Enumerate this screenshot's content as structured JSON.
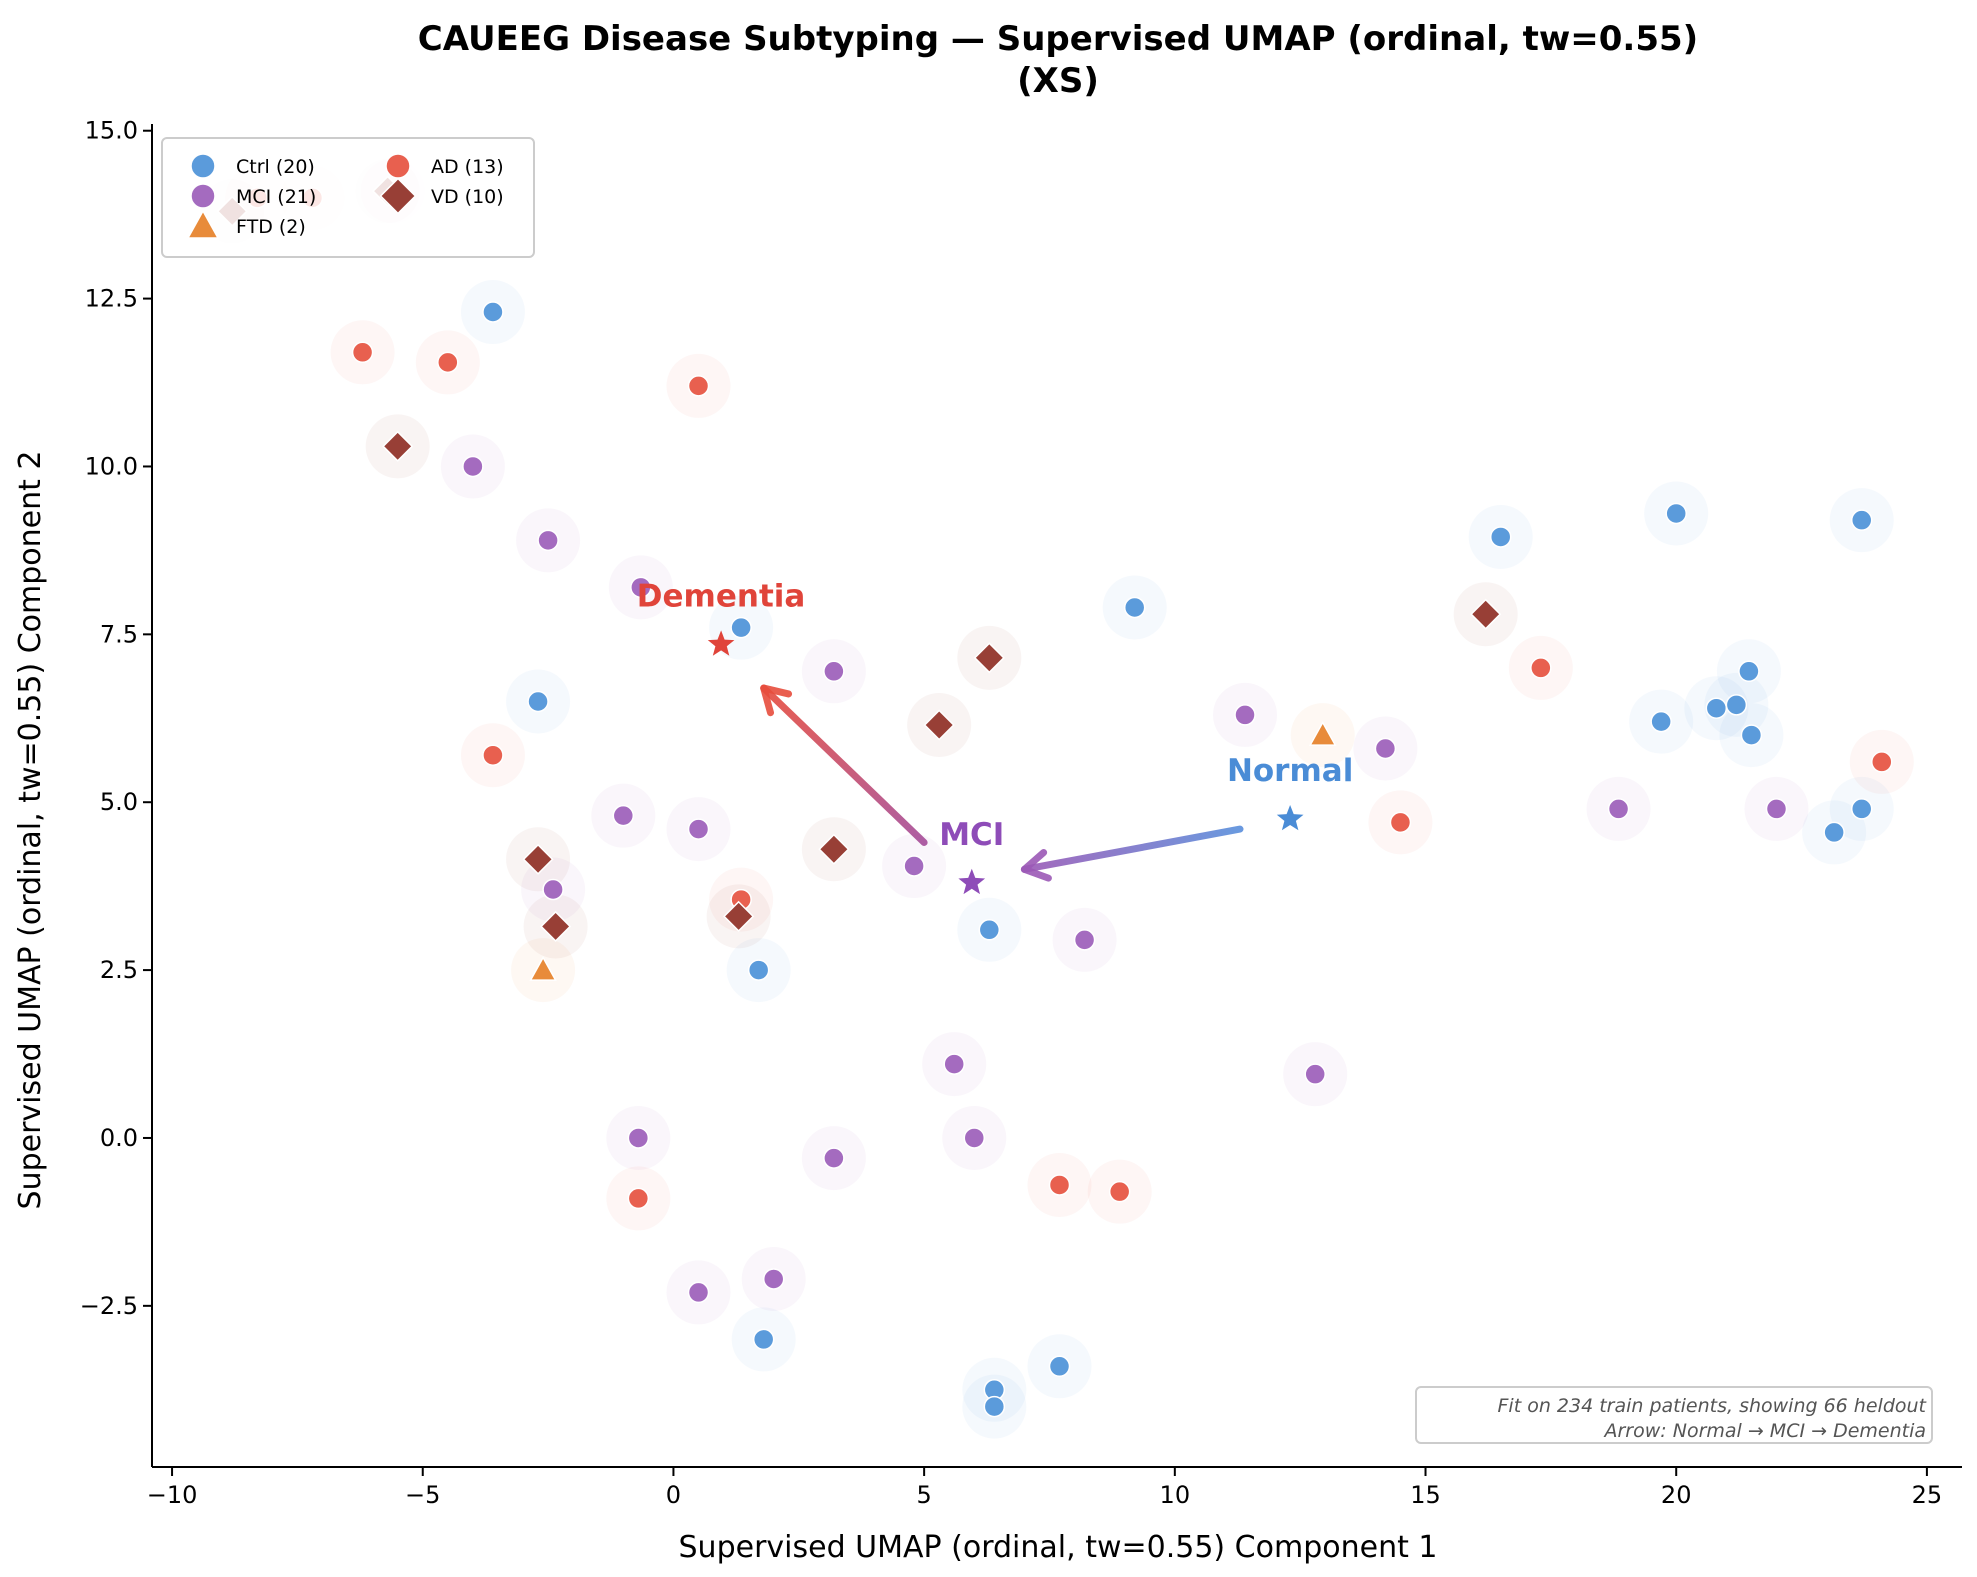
{
  "chart_data": {
    "type": "scatter",
    "title": "CAUEEG Disease Subtyping — Supervised UMAP (ordinal, tw=0.55)",
    "subtitle": "(XS)",
    "xlabel": "Supervised UMAP (ordinal, tw=0.55) Component 1",
    "ylabel": "Supervised UMAP (ordinal, tw=0.55) Component 2",
    "xlim": [
      -10.4,
      25.7
    ],
    "ylim": [
      -4.9,
      15.1
    ],
    "xticks": [
      -10,
      -5,
      0,
      5,
      10,
      15,
      20,
      25
    ],
    "xtick_labels": [
      "−10",
      "−5",
      "0",
      "5",
      "10",
      "15",
      "20",
      "25"
    ],
    "yticks": [
      -2.5,
      0.0,
      2.5,
      5.0,
      7.5,
      10.0,
      12.5,
      15.0
    ],
    "ytick_labels": [
      "−2.5",
      "0.0",
      "2.5",
      "5.0",
      "7.5",
      "10.0",
      "12.5",
      "15.0"
    ],
    "grid": false,
    "legend_placement": "top-left",
    "series": [
      {
        "name": "Ctrl",
        "legend_label": "Ctrl (20)",
        "marker": "circle",
        "color": "#5b9bdb",
        "points": [
          [
            -3.6,
            12.3
          ],
          [
            -2.7,
            6.5
          ],
          [
            1.35,
            7.6
          ],
          [
            1.7,
            2.5
          ],
          [
            6.3,
            3.1
          ],
          [
            9.2,
            7.9
          ],
          [
            16.5,
            8.95
          ],
          [
            20.0,
            9.3
          ],
          [
            23.7,
            9.2
          ],
          [
            21.45,
            6.95
          ],
          [
            20.8,
            6.4
          ],
          [
            21.2,
            6.45
          ],
          [
            21.5,
            6.0
          ],
          [
            19.7,
            6.2
          ],
          [
            23.7,
            4.9
          ],
          [
            23.15,
            4.55
          ],
          [
            1.8,
            -3.0
          ],
          [
            6.4,
            -3.75
          ],
          [
            6.4,
            -4.0
          ],
          [
            7.7,
            -3.4
          ]
        ]
      },
      {
        "name": "MCI",
        "legend_label": "MCI (21)",
        "marker": "circle",
        "color": "#a46bbf",
        "points": [
          [
            -5.6,
            14.1
          ],
          [
            -4.0,
            10.0
          ],
          [
            -2.5,
            8.9
          ],
          [
            -0.65,
            8.2
          ],
          [
            3.2,
            6.95
          ],
          [
            -1.0,
            4.8
          ],
          [
            0.5,
            4.6
          ],
          [
            4.8,
            4.05
          ],
          [
            -2.4,
            3.7
          ],
          [
            8.2,
            2.95
          ],
          [
            5.6,
            1.1
          ],
          [
            -0.7,
            0.0
          ],
          [
            6.0,
            0.0
          ],
          [
            3.2,
            -0.3
          ],
          [
            0.5,
            -2.3
          ],
          [
            2.0,
            -2.1
          ],
          [
            12.8,
            0.95
          ],
          [
            11.4,
            6.3
          ],
          [
            14.2,
            5.8
          ],
          [
            18.85,
            4.9
          ],
          [
            22.0,
            4.9
          ]
        ]
      },
      {
        "name": "FTD",
        "legend_label": "FTD (2)",
        "marker": "triangle",
        "color": "#e88b3a",
        "points": [
          [
            -2.6,
            2.5
          ],
          [
            12.95,
            6.0
          ]
        ]
      },
      {
        "name": "AD",
        "legend_label": "AD (13)",
        "marker": "circle",
        "color": "#e8604f",
        "points": [
          [
            -7.2,
            14.0
          ],
          [
            -6.2,
            11.7
          ],
          [
            -4.5,
            11.55
          ],
          [
            0.5,
            11.2
          ],
          [
            -3.6,
            5.7
          ],
          [
            1.35,
            3.55
          ],
          [
            -0.7,
            -0.9
          ],
          [
            7.7,
            -0.7
          ],
          [
            8.9,
            -0.8
          ],
          [
            14.5,
            4.7
          ],
          [
            17.3,
            7.0
          ],
          [
            -8.3,
            14.0
          ],
          [
            24.1,
            5.6
          ]
        ]
      },
      {
        "name": "VD",
        "legend_label": "VD (10)",
        "marker": "diamond",
        "color": "#983f36",
        "points": [
          [
            -8.8,
            13.8
          ],
          [
            -5.5,
            10.3
          ],
          [
            -2.7,
            4.15
          ],
          [
            -2.35,
            3.15
          ],
          [
            1.3,
            3.3
          ],
          [
            3.2,
            4.3
          ],
          [
            5.3,
            6.15
          ],
          [
            6.3,
            7.15
          ],
          [
            16.2,
            7.8
          ],
          [
            -5.7,
            14.1
          ]
        ]
      }
    ],
    "centroids": [
      {
        "label": "Normal",
        "x": 12.3,
        "y": 4.75,
        "color": "#4a8cd6"
      },
      {
        "label": "MCI",
        "x": 5.95,
        "y": 3.8,
        "color": "#8e4cb8"
      },
      {
        "label": "Dementia",
        "x": 0.95,
        "y": 7.35,
        "color": "#e0443a"
      }
    ],
    "arrows": [
      {
        "from": [
          11.3,
          4.6
        ],
        "to": [
          7.0,
          4.0
        ],
        "color_start": "#5a8fdc",
        "color_end": "#9b59b6"
      },
      {
        "from": [
          5.0,
          4.4
        ],
        "to": [
          1.8,
          6.7
        ],
        "color_start": "#a54d9a",
        "color_end": "#e74c3c"
      }
    ],
    "annotation": {
      "line1": "Fit on 234 train patients, showing 66 heldout",
      "line2": "Arrow: Normal → MCI → Dementia",
      "placement": "bottom-right"
    }
  }
}
